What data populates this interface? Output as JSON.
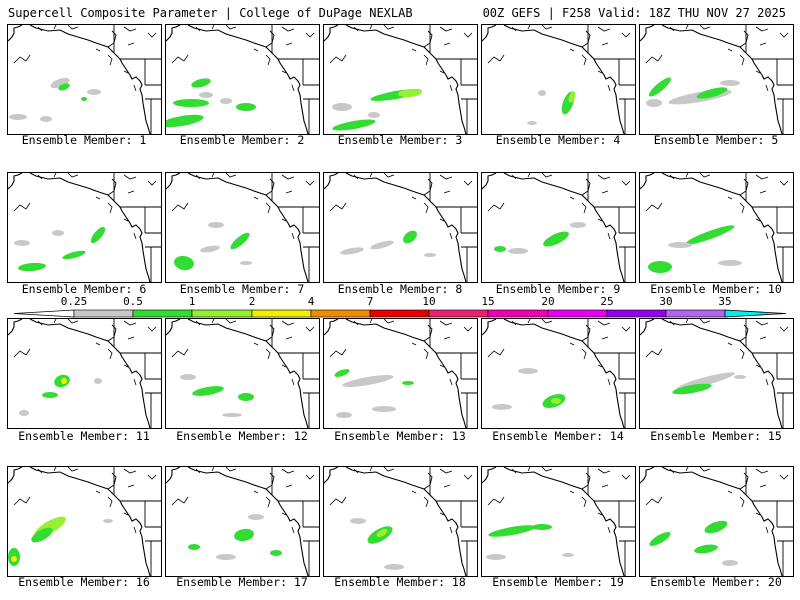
{
  "header": {
    "title": "Supercell Composite Parameter | College of DuPage NEXLAB",
    "run_info": "00Z GEFS | F258 Valid: 18Z THU NOV 27 2025"
  },
  "members": [
    "Ensemble Member: 1",
    "Ensemble Member: 2",
    "Ensemble Member: 3",
    "Ensemble Member: 4",
    "Ensemble Member: 5",
    "Ensemble Member: 6",
    "Ensemble Member: 7",
    "Ensemble Member: 8",
    "Ensemble Member: 9",
    "Ensemble Member: 10",
    "Ensemble Member: 11",
    "Ensemble Member: 12",
    "Ensemble Member: 13",
    "Ensemble Member: 14",
    "Ensemble Member: 15",
    "Ensemble Member: 16",
    "Ensemble Member: 17",
    "Ensemble Member: 18",
    "Ensemble Member: 19",
    "Ensemble Member: 20"
  ],
  "colorbar": {
    "labels": [
      "0.25",
      "0.5",
      "1",
      "2",
      "4",
      "7",
      "10",
      "15",
      "20",
      "25",
      "30",
      "35"
    ],
    "colors": [
      "#c8c8c8",
      "#32dc32",
      "#96f032",
      "#f0f000",
      "#f08c00",
      "#e60000",
      "#e6236e",
      "#f000b4",
      "#e600f0",
      "#9600e6",
      "#b464f0",
      "#00f0f0"
    ],
    "line_color": "#000000"
  }
}
